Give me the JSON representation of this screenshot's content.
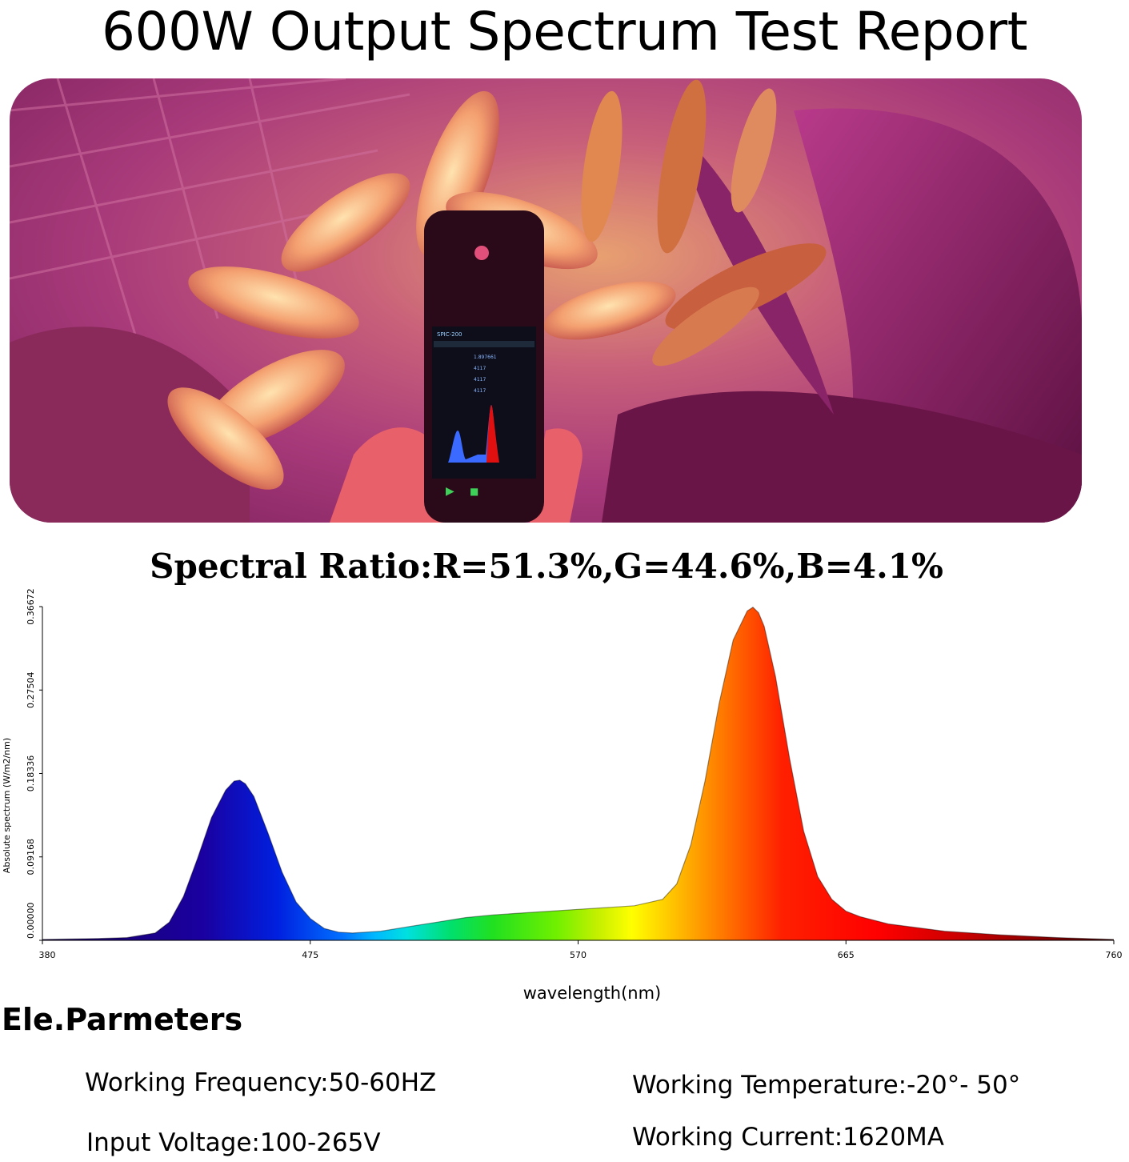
{
  "page": {
    "title": "600W Output Spectrum Test Report",
    "ratio_text": "Spectral Ratio:R=51.3%,G=44.6%,B=4.1%"
  },
  "photo": {
    "phone": {
      "model": "SPIC-200",
      "readings": [
        "1.897661",
        "4117",
        "4117",
        "4117"
      ]
    }
  },
  "chart_data": {
    "type": "area",
    "title": "",
    "xlabel": "wavelength(nm)",
    "ylabel": "Absolute spectrum (W/m2/nm)",
    "xlim": [
      380,
      760
    ],
    "ylim": [
      0,
      0.36672
    ],
    "x_ticks": [
      380,
      475,
      570,
      665,
      760
    ],
    "x_tick_labels": [
      "380",
      "475",
      "570",
      "665",
      "760"
    ],
    "y_ticks": [
      0.0,
      0.09168,
      0.18336,
      0.27504,
      0.36672
    ],
    "y_tick_labels": [
      "0.00000",
      "0.09168",
      "0.18336",
      "0.27504",
      "0.36672"
    ],
    "fill": "visible-spectrum gradient",
    "series": [
      {
        "x": [
          380,
          400,
          410,
          420,
          425,
          430,
          435,
          440,
          445,
          448,
          450,
          452,
          455,
          460,
          465,
          470,
          475,
          480,
          485,
          490,
          500,
          510,
          520,
          530,
          540,
          550,
          560,
          570,
          580,
          590,
          600,
          605,
          610,
          615,
          620,
          625,
          630,
          632,
          634,
          636,
          640,
          645,
          650,
          655,
          660,
          665,
          670,
          680,
          700,
          720,
          740,
          760
        ],
        "values": [
          0.001,
          0.002,
          0.003,
          0.008,
          0.02,
          0.048,
          0.09,
          0.135,
          0.165,
          0.175,
          0.176,
          0.172,
          0.158,
          0.118,
          0.075,
          0.042,
          0.024,
          0.013,
          0.009,
          0.008,
          0.01,
          0.015,
          0.02,
          0.025,
          0.028,
          0.03,
          0.032,
          0.034,
          0.036,
          0.038,
          0.045,
          0.062,
          0.105,
          0.175,
          0.26,
          0.33,
          0.362,
          0.366,
          0.36,
          0.345,
          0.29,
          0.2,
          0.12,
          0.07,
          0.045,
          0.032,
          0.026,
          0.018,
          0.01,
          0.006,
          0.003,
          0.001
        ]
      }
    ]
  },
  "params": {
    "title": "Ele.Parmeters",
    "working_frequency": "Working Frequency:50-60HZ",
    "working_temperature": "Working Temperature:-20°- 50°",
    "input_voltage": "Input Voltage:100-265V",
    "working_current": "Working Current:1620MA"
  }
}
